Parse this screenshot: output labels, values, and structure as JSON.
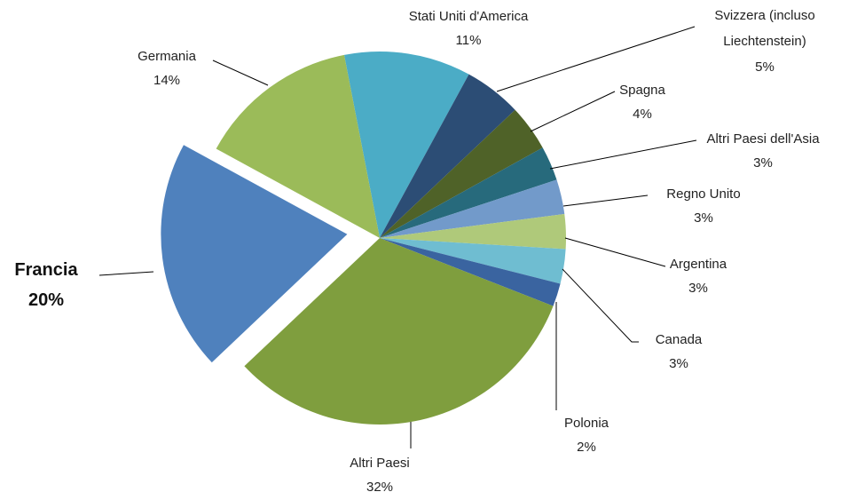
{
  "chart_data": {
    "type": "pie",
    "categories": [
      "Stati Uniti d'America",
      "Svizzera (incluso Liechtenstein)",
      "Spagna",
      "Altri Paesi dell'Asia",
      "Regno Unito",
      "Argentina",
      "Canada",
      "Polonia",
      "Altri Paesi",
      "Francia",
      "Germania"
    ],
    "values": [
      11,
      5,
      4,
      3,
      3,
      3,
      3,
      2,
      32,
      20,
      14
    ],
    "value_labels": [
      "11%",
      "5%",
      "4%",
      "3%",
      "3%",
      "3%",
      "3%",
      "2%",
      "32%",
      "20%",
      "14%"
    ],
    "colors": [
      "#4bacc6",
      "#2c4d75",
      "#4f6228",
      "#276a7c",
      "#729aca",
      "#afc97a",
      "#6fbdd1",
      "#3a64a0",
      "#7f9e3e",
      "#4f81bd",
      "#9bbb59"
    ],
    "exploded": "Francia"
  }
}
